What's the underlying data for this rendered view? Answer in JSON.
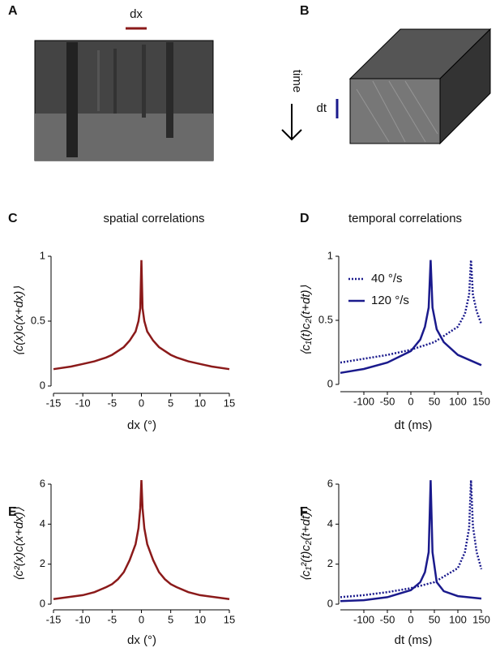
{
  "images": [
    {
      "panel": "A",
      "label": "dx"
    },
    {
      "panel": "B",
      "axis_label": "time",
      "scale_label": "dt"
    }
  ],
  "chart_data": [
    {
      "type": "line",
      "panel": "C",
      "title": "spatial correlations",
      "xlabel": "dx (°)",
      "ylabel": "⟨c(x)c(x+dx)⟩",
      "xlim": [
        -15,
        15
      ],
      "ylim": [
        0,
        1
      ],
      "xticks": [
        -15,
        -10,
        -5,
        0,
        5,
        10,
        15
      ],
      "yticks": [
        0,
        0.5,
        1
      ],
      "series": [
        {
          "color": "#8b1a1a",
          "dash": "solid",
          "x": [
            -15,
            -12,
            -10,
            -8,
            -6,
            -5,
            -4,
            -3,
            -2,
            -1,
            -0.5,
            -0.2,
            0,
            0.2,
            0.5,
            1,
            2,
            3,
            4,
            5,
            6,
            8,
            10,
            12,
            15
          ],
          "values": [
            0.13,
            0.15,
            0.17,
            0.19,
            0.22,
            0.24,
            0.27,
            0.3,
            0.35,
            0.42,
            0.5,
            0.6,
            0.97,
            0.6,
            0.5,
            0.42,
            0.35,
            0.3,
            0.27,
            0.24,
            0.22,
            0.19,
            0.17,
            0.15,
            0.13
          ]
        }
      ]
    },
    {
      "type": "line",
      "panel": "D",
      "title": "temporal correlations",
      "xlabel": "dt (ms)",
      "ylabel": "⟨c₁(t)c₂(t+dt)⟩",
      "xlim": [
        -150,
        150
      ],
      "ylim": [
        0,
        1
      ],
      "xticks": [
        -100,
        -50,
        0,
        50,
        100,
        150
      ],
      "yticks": [
        0,
        0.5,
        1
      ],
      "legend": "upper left",
      "series": [
        {
          "name": "40 °/s",
          "color": "#1a1a8c",
          "dash": "dotted",
          "x": [
            -150,
            -100,
            -50,
            0,
            50,
            100,
            115,
            124,
            128,
            132,
            140,
            150
          ],
          "values": [
            0.17,
            0.2,
            0.23,
            0.27,
            0.33,
            0.45,
            0.55,
            0.7,
            0.97,
            0.7,
            0.57,
            0.47
          ]
        },
        {
          "name": "120 °/s",
          "color": "#1a1a8c",
          "dash": "solid",
          "x": [
            -150,
            -100,
            -50,
            0,
            20,
            30,
            38,
            42,
            46,
            55,
            70,
            100,
            150
          ],
          "values": [
            0.09,
            0.12,
            0.17,
            0.26,
            0.35,
            0.45,
            0.6,
            0.97,
            0.6,
            0.43,
            0.33,
            0.23,
            0.15
          ]
        }
      ]
    },
    {
      "type": "line",
      "panel": "E",
      "xlabel": "dx (°)",
      "ylabel": "⟨c²(x)c(x+dx)⟩",
      "xlim": [
        -15,
        15
      ],
      "ylim": [
        0,
        6
      ],
      "xticks": [
        -15,
        -10,
        -5,
        0,
        5,
        10,
        15
      ],
      "yticks": [
        0,
        2,
        4,
        6
      ],
      "series": [
        {
          "color": "#8b1a1a",
          "dash": "solid",
          "x": [
            -15,
            -10,
            -8,
            -6,
            -5,
            -4,
            -3,
            -2,
            -1,
            -0.5,
            -0.2,
            0,
            0.2,
            0.5,
            1,
            2,
            3,
            4,
            5,
            6,
            8,
            10,
            15
          ],
          "values": [
            0.25,
            0.45,
            0.6,
            0.85,
            1.0,
            1.25,
            1.6,
            2.2,
            3.0,
            3.8,
            4.8,
            6.2,
            4.8,
            3.8,
            3.0,
            2.2,
            1.6,
            1.25,
            1.0,
            0.85,
            0.6,
            0.45,
            0.25
          ]
        }
      ]
    },
    {
      "type": "line",
      "panel": "F",
      "xlabel": "dt (ms)",
      "ylabel": "⟨c₁²(t)c₂(t+dt)⟩",
      "xlim": [
        -150,
        150
      ],
      "ylim": [
        0,
        6
      ],
      "xticks": [
        -100,
        -50,
        0,
        50,
        100,
        150
      ],
      "yticks": [
        0,
        2,
        4,
        6
      ],
      "series": [
        {
          "color": "#1a1a8c",
          "dash": "dotted",
          "x": [
            -150,
            -100,
            -50,
            0,
            50,
            100,
            115,
            124,
            128,
            132,
            140,
            150
          ],
          "values": [
            0.35,
            0.45,
            0.6,
            0.8,
            1.1,
            1.8,
            2.6,
            3.8,
            6.2,
            3.9,
            2.6,
            1.75
          ]
        },
        {
          "color": "#1a1a8c",
          "dash": "solid",
          "x": [
            -150,
            -100,
            -50,
            0,
            20,
            30,
            38,
            42,
            46,
            55,
            70,
            100,
            150
          ],
          "values": [
            0.15,
            0.2,
            0.35,
            0.7,
            1.1,
            1.6,
            2.6,
            6.2,
            2.6,
            1.1,
            0.65,
            0.4,
            0.28
          ]
        }
      ]
    }
  ]
}
